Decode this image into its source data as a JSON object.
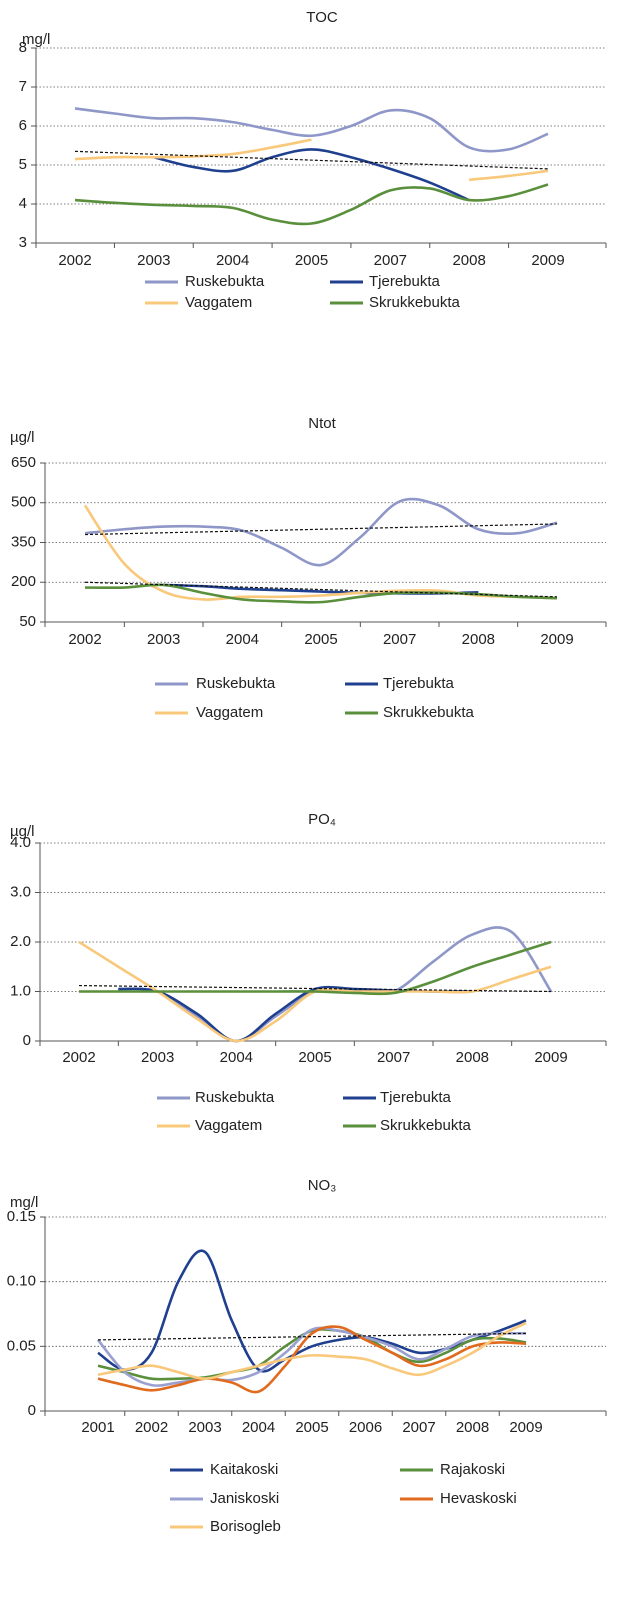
{
  "chart_data": [
    {
      "type": "line",
      "title": "TOC",
      "y_label": "mg/l",
      "categories": [
        "2002",
        null,
        "2003",
        null,
        "2004",
        null,
        "2005",
        null,
        "2007",
        null,
        "2008",
        null,
        "2009"
      ],
      "series": [
        {
          "name": "Ruskebukta",
          "color": "#8e97c8",
          "values": [
            6.45,
            6.32,
            6.2,
            6.2,
            6.1,
            5.9,
            5.75,
            6.0,
            6.4,
            6.2,
            5.45,
            5.4,
            5.8
          ]
        },
        {
          "name": "Tjerebukta",
          "color": "#1f3f8f",
          "values": [
            null,
            null,
            5.2,
            4.95,
            4.85,
            5.2,
            5.4,
            5.2,
            4.9,
            4.55,
            4.1,
            null,
            null
          ]
        },
        {
          "name": "Vaggatem",
          "color": "#f9c87a",
          "values": [
            5.15,
            5.2,
            5.2,
            5.22,
            5.28,
            5.45,
            5.65,
            null,
            null,
            null,
            4.62,
            4.72,
            4.85
          ]
        },
        {
          "name": "Skrukkebukta",
          "color": "#5a8f3c",
          "values": [
            4.1,
            4.03,
            3.98,
            3.95,
            3.9,
            3.6,
            3.5,
            3.85,
            4.35,
            4.4,
            4.1,
            4.2,
            4.5
          ]
        }
      ],
      "trend_lines": [
        [
          5.35,
          4.9
        ]
      ],
      "ylim": [
        3,
        8
      ],
      "yticks": [
        3,
        4,
        5,
        6,
        7,
        8
      ],
      "grid": true
    },
    {
      "type": "line",
      "title": "Ntot",
      "y_label": "µg/l",
      "categories": [
        "2002",
        null,
        "2003",
        null,
        "2004",
        null,
        "2005",
        null,
        "2007",
        null,
        "2008",
        null,
        "2009"
      ],
      "series": [
        {
          "name": "Ruskebukta",
          "color": "#8e97c8",
          "values": [
            385,
            400,
            410,
            410,
            395,
            330,
            265,
            370,
            505,
            490,
            400,
            385,
            425
          ]
        },
        {
          "name": "Tjerebukta",
          "color": "#1f3f8f",
          "values": [
            null,
            null,
            190,
            185,
            175,
            170,
            165,
            160,
            158,
            158,
            162,
            null,
            null
          ]
        },
        {
          "name": "Vaggatem",
          "color": "#f9c87a",
          "values": [
            490,
            270,
            165,
            135,
            145,
            145,
            150,
            160,
            168,
            168,
            150,
            145,
            140
          ]
        },
        {
          "name": "Skrukkebukta",
          "color": "#5a8f3c",
          "values": [
            180,
            180,
            190,
            160,
            135,
            128,
            125,
            145,
            160,
            160,
            155,
            145,
            140
          ]
        }
      ],
      "trend_lines": [
        [
          380,
          420
        ],
        [
          200,
          145
        ]
      ],
      "ylim": [
        50,
        650
      ],
      "yticks": [
        50,
        200,
        350,
        500,
        650
      ],
      "grid": true
    },
    {
      "type": "line",
      "title": "PO₄",
      "y_label": "µg/l",
      "categories": [
        "2002",
        null,
        "2003",
        null,
        "2004",
        null,
        "2005",
        null,
        "2007",
        null,
        "2008",
        null,
        "2009"
      ],
      "series": [
        {
          "name": "Ruskebukta",
          "color": "#8e97c8",
          "values": [
            null,
            1.05,
            1.0,
            0.5,
            0,
            0.5,
            1.0,
            1.0,
            1.0,
            1.6,
            2.15,
            2.2,
            1.0
          ]
        },
        {
          "name": "Tjerebukta",
          "color": "#1f3f8f",
          "values": [
            null,
            1.05,
            1.0,
            0.55,
            0,
            0.55,
            1.05,
            1.05,
            1.02,
            1.0,
            1.0,
            null,
            null
          ]
        },
        {
          "name": "Vaggatem",
          "color": "#f9c87a",
          "values": [
            2.0,
            1.5,
            1.0,
            0.45,
            0,
            0.4,
            1.0,
            1.0,
            1.0,
            1.0,
            1.0,
            1.25,
            1.5
          ]
        },
        {
          "name": "Skrukkebukta",
          "color": "#5a8f3c",
          "values": [
            1.0,
            1.0,
            1.0,
            1.0,
            1.0,
            1.0,
            1.0,
            0.97,
            0.97,
            1.2,
            1.5,
            1.75,
            2.0
          ]
        }
      ],
      "trend_lines": [
        [
          1.12,
          1.0
        ]
      ],
      "ylim": [
        0,
        4
      ],
      "yticks": [
        0,
        {
          "value": 1,
          "label": "1.0"
        },
        {
          "value": 2,
          "label": "2.0"
        },
        {
          "value": 3,
          "label": "3.0"
        },
        {
          "value": 4,
          "label": "4.0"
        }
      ],
      "grid": true
    },
    {
      "type": "line",
      "title": "NO₃",
      "y_label": "mg/l",
      "categories": [
        "2001",
        null,
        "2002",
        null,
        "2003",
        null,
        "2004",
        null,
        "2005",
        null,
        "2006",
        null,
        "2007",
        null,
        "2008",
        null,
        "2009"
      ],
      "series": [
        {
          "name": "Kaitakoski",
          "color": "#1f3f8f",
          "values": [
            0.045,
            0.032,
            0.045,
            0.1,
            0.123,
            0.07,
            0.032,
            0.04,
            0.05,
            0.055,
            0.057,
            0.052,
            0.045,
            0.048,
            0.055,
            0.062,
            0.07
          ]
        },
        {
          "name": "Rajakoski",
          "color": "#5a8f3c",
          "values": [
            0.035,
            0.03,
            0.025,
            0.025,
            0.026,
            0.03,
            0.035,
            0.05,
            0.062,
            0.062,
            0.057,
            0.045,
            0.038,
            0.045,
            0.055,
            0.056,
            0.053
          ]
        },
        {
          "name": "Janiskoski",
          "color": "#9aa0d0",
          "values": [
            0.055,
            0.03,
            0.02,
            0.022,
            0.025,
            0.024,
            0.03,
            0.045,
            0.063,
            0.062,
            0.057,
            0.05,
            0.04,
            0.048,
            0.058,
            0.06,
            0.06
          ]
        },
        {
          "name": "Hevaskoski",
          "color": "#e06a1e",
          "values": [
            0.025,
            0.02,
            0.016,
            0.02,
            0.025,
            0.022,
            0.015,
            0.035,
            0.06,
            0.065,
            0.055,
            0.045,
            0.035,
            0.04,
            0.05,
            0.053,
            0.052
          ]
        },
        {
          "name": "Borisogleb",
          "color": "#f9c87a",
          "values": [
            0.028,
            0.032,
            0.035,
            0.03,
            0.025,
            0.03,
            0.035,
            0.04,
            0.043,
            0.042,
            0.04,
            0.033,
            0.028,
            0.035,
            0.045,
            0.058,
            0.068
          ]
        }
      ],
      "trend_lines": [
        [
          0.055,
          0.06
        ]
      ],
      "ylim": [
        0,
        0.15
      ],
      "yticks": [
        0,
        0.05,
        {
          "value": 0.1,
          "label": "0.10"
        },
        0.15
      ],
      "grid": true
    }
  ]
}
